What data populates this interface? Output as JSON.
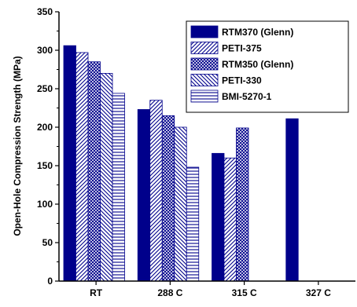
{
  "chart_data": {
    "type": "bar",
    "title": "",
    "xlabel": "",
    "ylabel": "Open-Hole Compression Strength (MPa)",
    "ylim": [
      0,
      350
    ],
    "y_ticks": [
      0,
      50,
      100,
      150,
      200,
      250,
      300,
      350
    ],
    "categories": [
      "RT",
      "288 C",
      "315 C",
      "327 C"
    ],
    "legend_position": "top-right",
    "grid": false,
    "series": [
      {
        "name": "RTM370 (Glenn)",
        "pattern": "solid",
        "color": "#00008b",
        "values": [
          306,
          223,
          166,
          211
        ]
      },
      {
        "name": "PETI-375",
        "pattern": "diagonal-forward",
        "color": "#00008b",
        "values": [
          297,
          235,
          160,
          null
        ]
      },
      {
        "name": "RTM350 (Glenn)",
        "pattern": "crosshatch",
        "color": "#00008b",
        "values": [
          285,
          215,
          199,
          null
        ]
      },
      {
        "name": "PETI-330",
        "pattern": "diagonal-back",
        "color": "#00008b",
        "values": [
          270,
          200,
          null,
          null
        ]
      },
      {
        "name": "BMI-5270-1",
        "pattern": "horizontal",
        "color": "#00008b",
        "values": [
          244,
          148,
          null,
          null
        ]
      }
    ]
  }
}
